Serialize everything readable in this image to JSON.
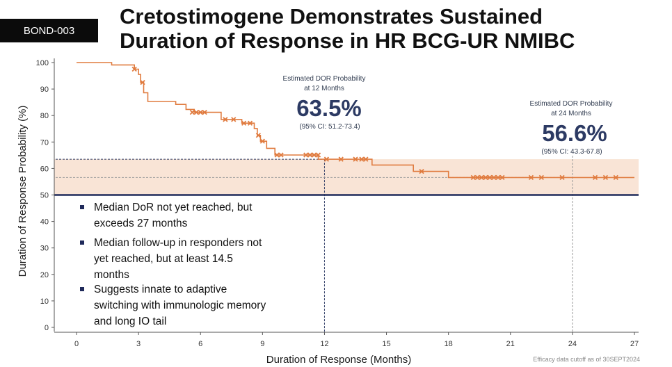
{
  "badge": "BOND-003",
  "title_line1": "Cretostimogene Demonstrates Sustained",
  "title_line2": "Duration of Response in HR BCG-UR NMIBC",
  "footnote": "Efficacy data cutoff as of 30SEPT2024",
  "annotations": [
    {
      "id": "m12",
      "label_line1": "Estimated DOR Probability",
      "label_line2": "at 12 Months",
      "value": "63.5%",
      "ci": "(95% CI: 51.2-73.4)"
    },
    {
      "id": "m24",
      "label_line1": "Estimated DOR Probability",
      "label_line2": "at 24 Months",
      "value": "56.6%",
      "ci": "(95% CI: 43.3-67.8)"
    }
  ],
  "bullets": [
    [
      "Median DoR not yet reached, but",
      "exceeds 27 months"
    ],
    [
      "Median follow-up in responders not",
      "yet reached, but at least 14.5",
      "months"
    ],
    [
      "Suggests innate to adaptive",
      "switching with immunologic memory",
      "and long IO tail"
    ]
  ],
  "colors": {
    "curve": "#e07b3f",
    "censor": "#e07b3f",
    "reference_line": "#1f2a5a",
    "band": "#f9e4d6",
    "annotation_value": "#2c3a63"
  },
  "chart_data": {
    "type": "line",
    "xlabel": "Duration of Response (Months)",
    "ylabel": "Duration of Response Probability (%)",
    "xlim": [
      0,
      27
    ],
    "ylim": [
      0,
      100
    ],
    "xticks": [
      0,
      3,
      6,
      9,
      12,
      15,
      18,
      21,
      24,
      27
    ],
    "yticks": [
      0,
      10,
      20,
      30,
      40,
      50,
      60,
      70,
      80,
      90,
      100
    ],
    "grid": false,
    "reference_line_y": 50,
    "markers": [
      {
        "x": 12,
        "y": 63.5
      },
      {
        "x": 24,
        "y": 56.6
      }
    ],
    "series": [
      {
        "step": [
          [
            0,
            100
          ],
          [
            1.7,
            100
          ],
          [
            1.7,
            99.1
          ],
          [
            2.8,
            99.1
          ],
          [
            2.8,
            97.5
          ],
          [
            3.0,
            97.5
          ],
          [
            3.0,
            95.5
          ],
          [
            3.1,
            95.5
          ],
          [
            3.1,
            92.5
          ],
          [
            3.25,
            92.5
          ],
          [
            3.25,
            88.6
          ],
          [
            3.45,
            88.6
          ],
          [
            3.45,
            85.3
          ],
          [
            4.8,
            85.3
          ],
          [
            4.8,
            84.2
          ],
          [
            5.3,
            84.2
          ],
          [
            5.3,
            82.3
          ],
          [
            5.7,
            82.3
          ],
          [
            5.7,
            81.2
          ],
          [
            7.0,
            81.2
          ],
          [
            7.0,
            78.5
          ],
          [
            8.0,
            78.5
          ],
          [
            8.0,
            77.1
          ],
          [
            8.6,
            77.1
          ],
          [
            8.6,
            75.1
          ],
          [
            8.75,
            75.1
          ],
          [
            8.75,
            72.5
          ],
          [
            8.9,
            72.5
          ],
          [
            8.9,
            70.3
          ],
          [
            9.2,
            70.3
          ],
          [
            9.2,
            67.6
          ],
          [
            9.6,
            67.6
          ],
          [
            9.6,
            65.1
          ],
          [
            11.7,
            65.1
          ],
          [
            11.7,
            63.5
          ],
          [
            14.3,
            63.5
          ],
          [
            14.3,
            61.3
          ],
          [
            16.3,
            61.3
          ],
          [
            16.3,
            58.9
          ],
          [
            18.0,
            58.9
          ],
          [
            18.0,
            56.6
          ],
          [
            27.0,
            56.6
          ]
        ],
        "censored": [
          [
            2.8,
            97.5
          ],
          [
            3.2,
            92.5
          ],
          [
            5.6,
            81.2
          ],
          [
            5.8,
            81.2
          ],
          [
            6.0,
            81.2
          ],
          [
            6.2,
            81.2
          ],
          [
            7.2,
            78.5
          ],
          [
            7.6,
            78.5
          ],
          [
            8.1,
            77.1
          ],
          [
            8.4,
            77.1
          ],
          [
            8.8,
            72.5
          ],
          [
            9.0,
            70.3
          ],
          [
            9.7,
            65.1
          ],
          [
            9.9,
            65.1
          ],
          [
            11.1,
            65.1
          ],
          [
            11.3,
            65.1
          ],
          [
            11.5,
            65.1
          ],
          [
            11.7,
            65.1
          ],
          [
            12.1,
            63.5
          ],
          [
            12.8,
            63.5
          ],
          [
            13.5,
            63.5
          ],
          [
            13.8,
            63.5
          ],
          [
            14.0,
            63.5
          ],
          [
            16.7,
            58.9
          ],
          [
            19.2,
            56.6
          ],
          [
            19.4,
            56.6
          ],
          [
            19.6,
            56.6
          ],
          [
            19.8,
            56.6
          ],
          [
            20.0,
            56.6
          ],
          [
            20.2,
            56.6
          ],
          [
            20.4,
            56.6
          ],
          [
            20.6,
            56.6
          ],
          [
            22.0,
            56.6
          ],
          [
            22.5,
            56.6
          ],
          [
            23.5,
            56.6
          ],
          [
            25.1,
            56.6
          ],
          [
            25.6,
            56.6
          ],
          [
            26.1,
            56.6
          ]
        ]
      }
    ]
  }
}
